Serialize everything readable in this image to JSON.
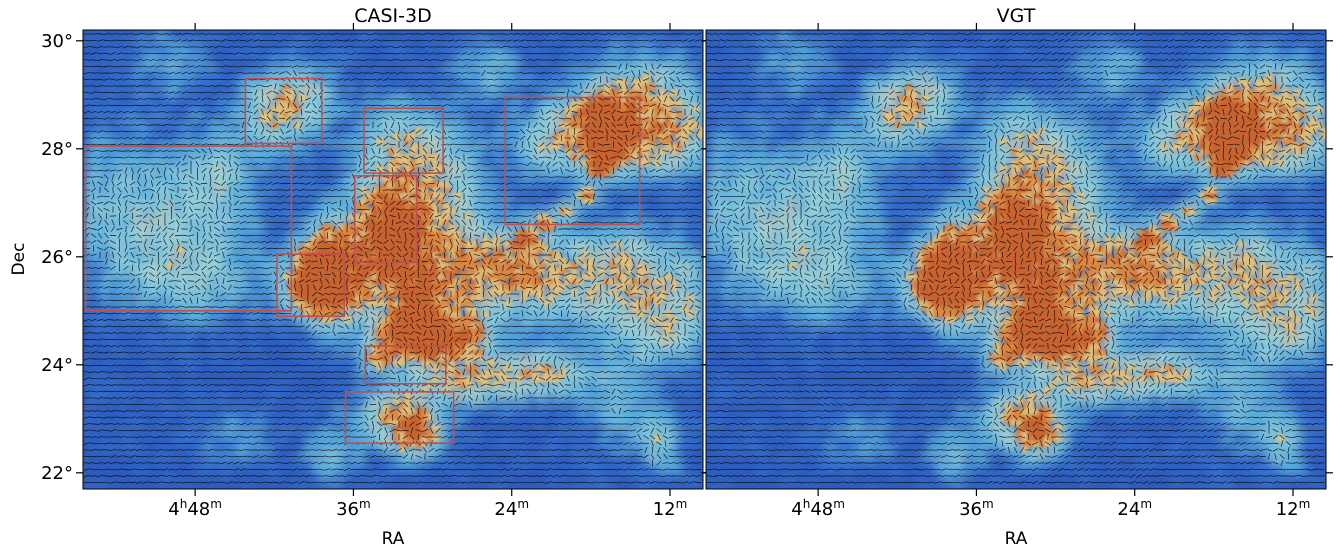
{
  "chart_data": {
    "type": "heatmap",
    "y_axis": {
      "label": "Dec",
      "ticks": [
        "22°",
        "24°",
        "26°",
        "28°",
        "30°"
      ],
      "tick_values": [
        22,
        24,
        26,
        28,
        30
      ],
      "range": [
        21.7,
        30.2
      ]
    },
    "x_axis": {
      "label": "RA",
      "ticks": [
        {
          "main": "4",
          "sup1": "h",
          "mid": "48",
          "sup2": "m"
        },
        {
          "main": "",
          "sup1": "",
          "mid": "36",
          "sup2": "m"
        },
        {
          "main": "",
          "sup1": "",
          "mid": "24",
          "sup2": "m"
        },
        {
          "main": "",
          "sup1": "",
          "mid": "12",
          "sup2": "m"
        }
      ],
      "tick_values_min": [
        48,
        36,
        24,
        12
      ],
      "range_min": [
        56.5,
        9.5
      ]
    },
    "colormap": [
      "#2a56b5",
      "#3a78d0",
      "#5fb5de",
      "#9cd8dc",
      "#e8c47a",
      "#e58a3a",
      "#d2642a"
    ],
    "vector_color": "#000000",
    "grid": false,
    "panels": [
      {
        "title": "CASI-3D",
        "regions": [
          {
            "ra_min": [
              56.3,
              40.7
            ],
            "dec": [
              25.0,
              28.05
            ]
          },
          {
            "ra_min": [
              44.2,
              38.4
            ],
            "dec": [
              28.1,
              29.3
            ]
          },
          {
            "ra_min": [
              41.8,
              36.7
            ],
            "dec": [
              24.9,
              26.05
            ]
          },
          {
            "ra_min": [
              35.9,
              31.2
            ],
            "dec": [
              25.9,
              27.5
            ]
          },
          {
            "ra_min": [
              35.2,
              29.2
            ],
            "dec": [
              27.55,
              28.75
            ]
          },
          {
            "ra_min": [
              24.5,
              14.3
            ],
            "dec": [
              26.6,
              28.95
            ]
          },
          {
            "ra_min": [
              35.1,
              29.0
            ],
            "dec": [
              23.65,
              24.35
            ]
          },
          {
            "ra_min": [
              36.6,
              28.4
            ],
            "dec": [
              22.55,
              23.5
            ]
          }
        ],
        "region_color": "#c0504d"
      },
      {
        "title": "VGT",
        "regions": []
      }
    ]
  }
}
